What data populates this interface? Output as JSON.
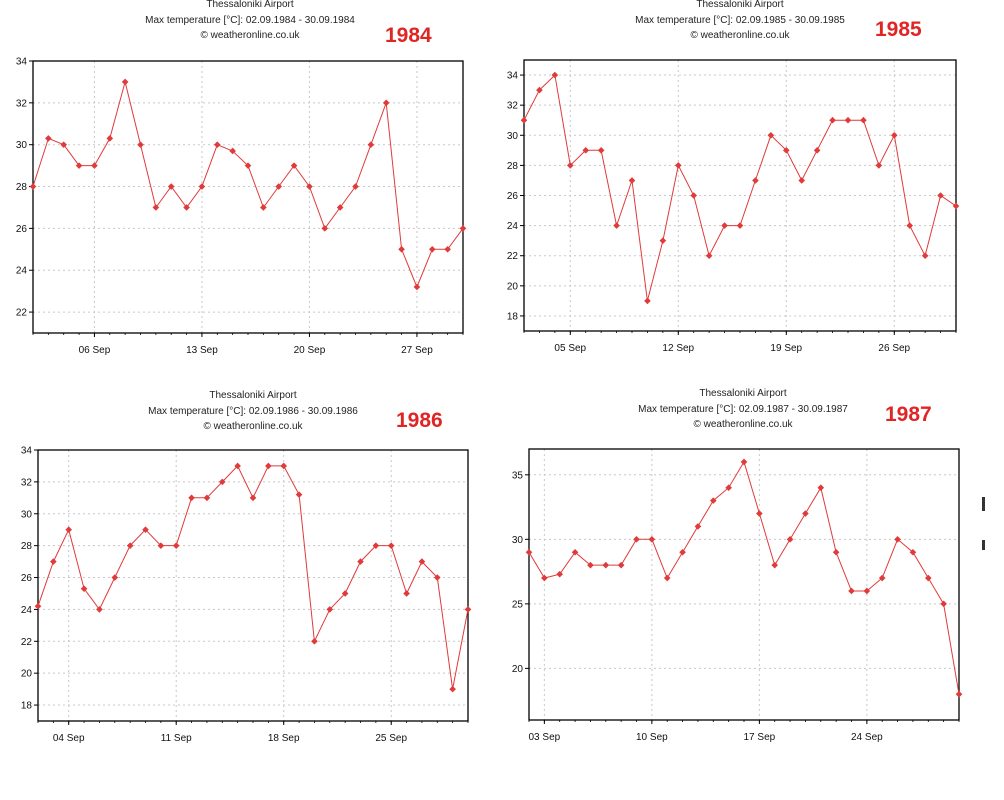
{
  "chart_data": [
    {
      "type": "line",
      "title": "Thessaloniki Airport",
      "subtitle": "Max temperature [°C]: 02.09.1984 - 30.09.1984",
      "credit": "© weatheronline.co.uk",
      "year_label": "1984",
      "xlabel": "",
      "ylabel": "",
      "x_range": [
        2,
        30
      ],
      "ylim": [
        21,
        34
      ],
      "yticks": [
        22,
        24,
        26,
        28,
        30,
        32,
        34
      ],
      "xticks": [
        {
          "day": 6,
          "label": "06 Sep"
        },
        {
          "day": 13,
          "label": "13 Sep"
        },
        {
          "day": 20,
          "label": "20 Sep"
        },
        {
          "day": 27,
          "label": "27 Sep"
        }
      ],
      "grid": true,
      "series": [
        {
          "name": "Max temperature",
          "color": "#e03a3a",
          "x": [
            2,
            3,
            4,
            5,
            6,
            7,
            8,
            9,
            10,
            11,
            12,
            13,
            14,
            15,
            16,
            17,
            18,
            19,
            20,
            21,
            22,
            23,
            24,
            25,
            26,
            27,
            28,
            29,
            30
          ],
          "values": [
            28,
            30.3,
            30,
            29,
            29,
            30.3,
            33,
            30,
            27,
            28,
            27,
            28,
            30,
            29.7,
            29,
            27,
            28,
            29,
            28,
            26,
            27,
            28,
            30,
            32,
            25,
            23.2,
            25,
            25,
            26
          ]
        }
      ]
    },
    {
      "type": "line",
      "title": "Thessaloniki Airport",
      "subtitle": "Max temperature [°C]: 02.09.1985 - 30.09.1985",
      "credit": "© weatheronline.co.uk",
      "year_label": "1985",
      "xlabel": "",
      "ylabel": "",
      "x_range": [
        2,
        30
      ],
      "ylim": [
        17,
        35
      ],
      "yticks": [
        18,
        20,
        22,
        24,
        26,
        28,
        30,
        32,
        34
      ],
      "xticks": [
        {
          "day": 5,
          "label": "05 Sep"
        },
        {
          "day": 12,
          "label": "12 Sep"
        },
        {
          "day": 19,
          "label": "19 Sep"
        },
        {
          "day": 26,
          "label": "26 Sep"
        }
      ],
      "grid": true,
      "series": [
        {
          "name": "Max temperature",
          "color": "#e03a3a",
          "x": [
            2,
            3,
            4,
            5,
            6,
            7,
            8,
            9,
            10,
            11,
            12,
            13,
            14,
            15,
            16,
            17,
            18,
            19,
            20,
            21,
            22,
            23,
            24,
            25,
            26,
            27,
            28,
            29,
            30
          ],
          "values": [
            31,
            33,
            34,
            28,
            29,
            29,
            24,
            27,
            19,
            23,
            28,
            26,
            22,
            24,
            24,
            27,
            30,
            29,
            27,
            29,
            31,
            31,
            31,
            28,
            30,
            24,
            22,
            26,
            25.3
          ]
        }
      ]
    },
    {
      "type": "line",
      "title": "Thessaloniki Airport",
      "subtitle": "Max temperature [°C]: 02.09.1986 - 30.09.1986",
      "credit": "© weatheronline.co.uk",
      "year_label": "1986",
      "xlabel": "",
      "ylabel": "",
      "x_range": [
        2,
        30
      ],
      "ylim": [
        17,
        34
      ],
      "yticks": [
        18,
        20,
        22,
        24,
        26,
        28,
        30,
        32,
        34
      ],
      "xticks": [
        {
          "day": 4,
          "label": "04 Sep"
        },
        {
          "day": 11,
          "label": "11 Sep"
        },
        {
          "day": 18,
          "label": "18 Sep"
        },
        {
          "day": 25,
          "label": "25 Sep"
        }
      ],
      "grid": true,
      "series": [
        {
          "name": "Max temperature",
          "color": "#e03a3a",
          "x": [
            2,
            3,
            4,
            5,
            6,
            7,
            8,
            9,
            10,
            11,
            12,
            13,
            14,
            15,
            16,
            17,
            18,
            19,
            20,
            21,
            22,
            23,
            24,
            25,
            26,
            27,
            28,
            29,
            30
          ],
          "values": [
            24.2,
            27,
            29,
            25.3,
            24,
            26,
            28,
            29,
            28,
            28,
            31,
            31,
            32,
            33,
            31,
            33,
            33,
            31.2,
            22,
            24,
            25,
            27,
            28,
            28,
            25,
            27,
            26,
            19,
            24
          ]
        }
      ]
    },
    {
      "type": "line",
      "title": "Thessaloniki Airport",
      "subtitle": "Max temperature [°C]: 02.09.1987 - 30.09.1987",
      "credit": "© weatheronline.co.uk",
      "year_label": "1987",
      "xlabel": "",
      "ylabel": "",
      "x_range": [
        2,
        30
      ],
      "ylim": [
        16,
        37
      ],
      "yticks": [
        20,
        25,
        30,
        35
      ],
      "xticks": [
        {
          "day": 3,
          "label": "03 Sep"
        },
        {
          "day": 10,
          "label": "10 Sep"
        },
        {
          "day": 17,
          "label": "17 Sep"
        },
        {
          "day": 24,
          "label": "24 Sep"
        }
      ],
      "grid": true,
      "series": [
        {
          "name": "Max temperature",
          "color": "#e03a3a",
          "x": [
            2,
            3,
            4,
            5,
            6,
            7,
            8,
            9,
            10,
            11,
            12,
            13,
            14,
            15,
            16,
            17,
            18,
            19,
            20,
            21,
            22,
            23,
            24,
            25,
            26,
            27,
            28,
            29,
            30
          ],
          "values": [
            29,
            27,
            27.3,
            29,
            28,
            28,
            28,
            30,
            30,
            27,
            29,
            31,
            33,
            34,
            36,
            32,
            28,
            30,
            32,
            34,
            29,
            26,
            26,
            27,
            30,
            29,
            27,
            25,
            18
          ]
        }
      ]
    }
  ]
}
